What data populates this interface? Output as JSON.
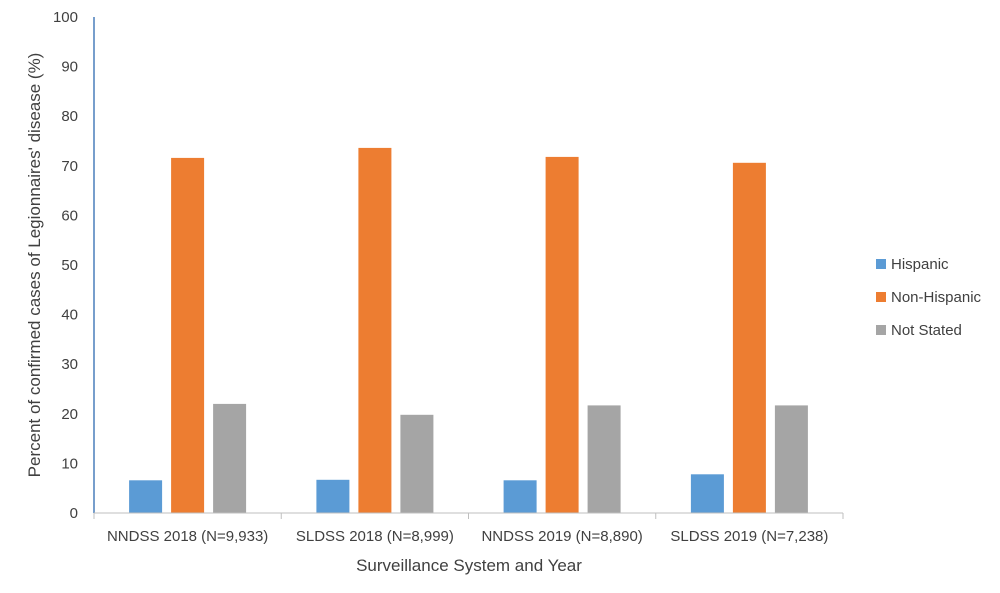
{
  "chart_data": {
    "type": "bar",
    "xlabel": "Surveillance System and Year",
    "ylabel": "Percent of confirmed cases of Legionnaires' disease (%)",
    "ylim": [
      0,
      100
    ],
    "yticks": [
      0,
      10,
      20,
      30,
      40,
      50,
      60,
      70,
      80,
      90,
      100
    ],
    "grid": false,
    "legend_position": "right",
    "categories": [
      "NNDSS 2018 (N=9,933)",
      "SLDSS 2018 (N=8,999)",
      "NNDSS 2019 (N=8,890)",
      "SLDSS 2019 (N=7,238)"
    ],
    "series": [
      {
        "name": "Hispanic",
        "color": "#5b9bd5",
        "values": [
          6.6,
          6.7,
          6.6,
          7.8
        ]
      },
      {
        "name": "Non-Hispanic",
        "color": "#ed7d31",
        "values": [
          71.6,
          73.6,
          71.8,
          70.6
        ]
      },
      {
        "name": "Not Stated",
        "color": "#a5a5a5",
        "values": [
          22.0,
          19.8,
          21.7,
          21.7
        ]
      }
    ]
  },
  "colors": {
    "y_axis_line": "#4a7ebb",
    "x_axis_line": "#bfbfbf",
    "text": "#404040"
  }
}
